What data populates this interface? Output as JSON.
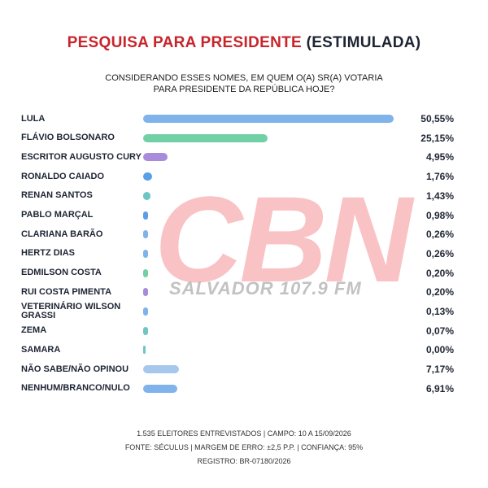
{
  "chart_data": {
    "type": "bar",
    "title": "PESQUISA PARA PRESIDENTE",
    "title_note": "(ESTIMULADA)",
    "subtitle": [
      "CONSIDERANDO ESSES NOMES, EM QUEM O(A) SR(A) VOTARIA",
      "PARA PRESIDENTE DA REPÚBLICA HOJE?"
    ],
    "categories": [
      "LULA",
      "FLÁVIO BOLSONARO",
      "ESCRITOR AUGUSTO CURY",
      "RONALDO CAIADO",
      "RENAN SANTOS",
      "PABLO MARÇAL",
      "CLARIANA BARÃO",
      "HERTZ DIAS",
      "EDMILSON COSTA",
      "RUI COSTA PIMENTA",
      "VETERINÁRIO WILSON GRASSI",
      "ZEMA",
      "SAMARA",
      "NÃO SABE/NÃO OPINOU",
      "NENHUM/BRANCO/NULO"
    ],
    "values": [
      50.55,
      25.15,
      4.95,
      1.76,
      1.43,
      0.98,
      0.26,
      0.26,
      0.2,
      0.2,
      0.13,
      0.07,
      0.0,
      7.17,
      6.91
    ],
    "value_labels": [
      "50,55%",
      "25,15%",
      "4,95%",
      "1,76%",
      "1,43%",
      "0,98%",
      "0,26%",
      "0,26%",
      "0,20%",
      "0,20%",
      "0,13%",
      "0,07%",
      "0,00%",
      "7,17%",
      "6,91%"
    ],
    "colors": [
      "#7fb3ea",
      "#72d0a6",
      "#a98bdc",
      "#5b9ee6",
      "#6cc6c6",
      "#5b9ee6",
      "#7fb3ea",
      "#7fb3ea",
      "#72d0a6",
      "#a98bdc",
      "#7fb3ea",
      "#6cc6c6",
      "#6cc6c6",
      "#a6c8ec",
      "#7fb3ea"
    ],
    "watermark": [
      "CBN",
      "SALVADOR 107.9 FM"
    ],
    "footer": [
      "1.535 ELEITORES ENTREVISTADOS | CAMPO: 10 A 15/09/2026",
      "FONTE: SÉCULUS | MARGEM DE ERRO: ±2,5 P.P. | CONFIANÇA: 95%",
      "REGISTRO: BR-07180/2026"
    ]
  }
}
